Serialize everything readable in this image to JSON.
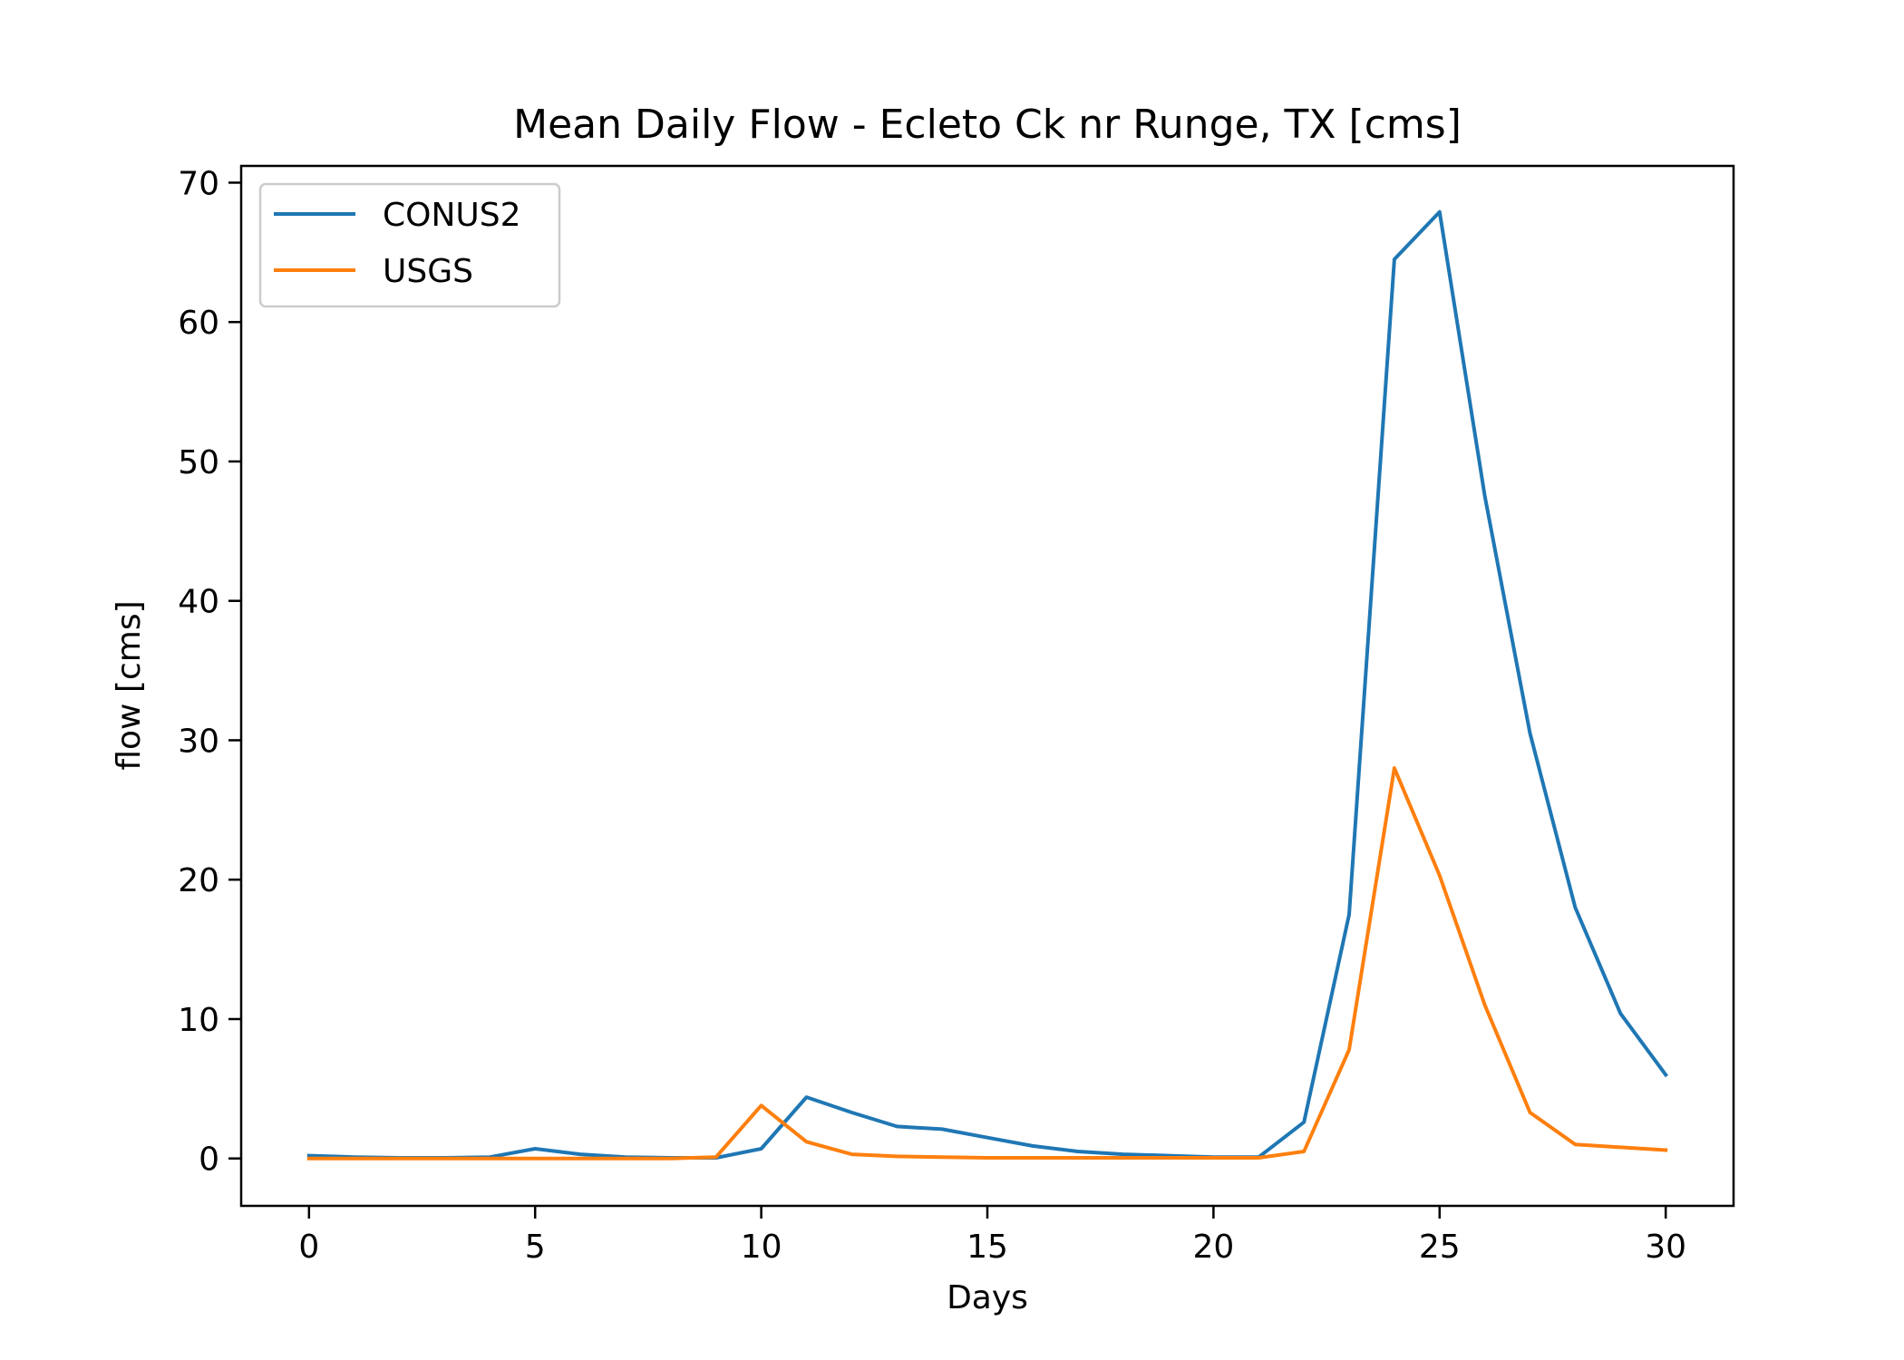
{
  "chart_data": {
    "type": "line",
    "title": "Mean Daily Flow - Ecleto Ck nr Runge, TX [cms]",
    "xlabel": "Days",
    "ylabel": "flow [cms]",
    "xlim": [
      -1.5,
      31.5
    ],
    "ylim": [
      -3.4,
      71.2
    ],
    "xticks": [
      0,
      5,
      10,
      15,
      20,
      25,
      30
    ],
    "yticks": [
      0,
      10,
      20,
      30,
      40,
      50,
      60,
      70
    ],
    "grid": false,
    "legend_position": "top-left",
    "x": [
      0,
      1,
      2,
      3,
      4,
      5,
      6,
      7,
      8,
      9,
      10,
      11,
      12,
      13,
      14,
      15,
      16,
      17,
      18,
      19,
      20,
      21,
      22,
      23,
      24,
      25,
      26,
      27,
      28,
      29,
      30
    ],
    "series": [
      {
        "name": "CONUS2",
        "color": "#1f77b4",
        "values": [
          0.2,
          0.1,
          0.05,
          0.05,
          0.1,
          0.7,
          0.3,
          0.1,
          0.05,
          0.05,
          0.7,
          4.4,
          3.3,
          2.3,
          2.1,
          1.5,
          0.9,
          0.5,
          0.3,
          0.2,
          0.1,
          0.1,
          2.6,
          17.5,
          64.5,
          67.9,
          47.5,
          30.5,
          18.0,
          10.4,
          6.0
        ]
      },
      {
        "name": "USGS",
        "color": "#ff7f0e",
        "values": [
          0.0,
          0.0,
          0.0,
          0.0,
          0.0,
          0.0,
          0.0,
          0.0,
          0.0,
          0.1,
          3.8,
          1.2,
          0.3,
          0.15,
          0.1,
          0.05,
          0.05,
          0.05,
          0.05,
          0.05,
          0.05,
          0.05,
          0.5,
          7.8,
          28.0,
          20.3,
          11.0,
          3.3,
          1.0,
          0.8,
          0.6
        ]
      }
    ]
  }
}
